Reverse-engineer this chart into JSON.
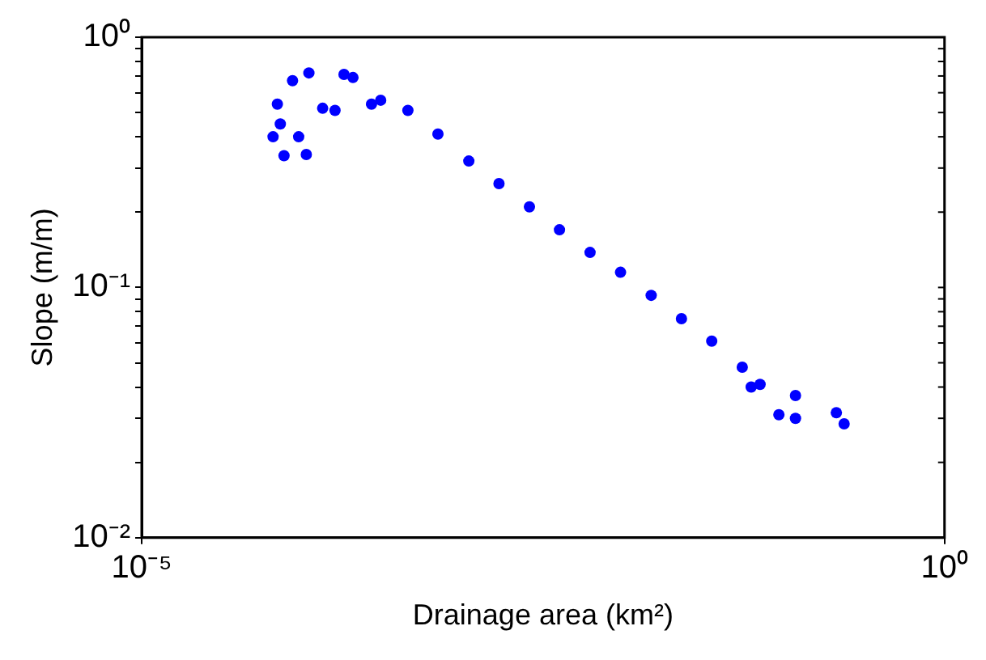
{
  "chart_data": {
    "type": "scatter",
    "xlabel": "Drainage area (km²)",
    "ylabel": "Slope (m/m)",
    "log": "xy",
    "grid": false,
    "legend": false,
    "marker": "circle",
    "xlim": [
      1e-05,
      1
    ],
    "ylim": [
      0.01,
      1
    ],
    "xticks": [
      {
        "value": 1e-05,
        "label": "10⁻⁵"
      },
      {
        "value": 1,
        "label": "10⁰"
      }
    ],
    "yticks": [
      {
        "value": 0.01,
        "label": "10⁻²"
      },
      {
        "value": 0.02,
        "label": null
      },
      {
        "value": 0.03,
        "label": null
      },
      {
        "value": 0.04,
        "label": null
      },
      {
        "value": 0.05,
        "label": null
      },
      {
        "value": 0.06,
        "label": null
      },
      {
        "value": 0.07,
        "label": null
      },
      {
        "value": 0.08,
        "label": null
      },
      {
        "value": 0.09,
        "label": null
      },
      {
        "value": 0.1,
        "label": "10⁻¹"
      },
      {
        "value": 0.2,
        "label": null
      },
      {
        "value": 0.3,
        "label": null
      },
      {
        "value": 0.4,
        "label": null
      },
      {
        "value": 0.5,
        "label": null
      },
      {
        "value": 0.6,
        "label": null
      },
      {
        "value": 0.7,
        "label": null
      },
      {
        "value": 0.8,
        "label": null
      },
      {
        "value": 0.9,
        "label": null
      },
      {
        "value": 1,
        "label": "10⁰"
      }
    ],
    "series": [
      {
        "color": "#0000ff",
        "x": [
          6.58e-05,
          7.7e-05,
          0.000106,
          8.7e-05,
          0.00011,
          7e-05,
          7.3e-05,
          9.5e-05,
          0.000134,
          0.00016,
          0.000182,
          0.000207,
          0.00027,
          0.000308,
          0.000455,
          0.0007,
          0.00109,
          0.00168,
          0.0026,
          0.004,
          0.0062,
          0.0096,
          0.0149,
          0.023,
          0.0355,
          0.055,
          0.0625,
          0.071,
          0.093,
          0.118,
          0.118,
          0.212,
          0.237
        ],
        "values": [
          0.4,
          0.336,
          0.34,
          0.67,
          0.72,
          0.54,
          0.45,
          0.4,
          0.52,
          0.51,
          0.71,
          0.69,
          0.54,
          0.56,
          0.51,
          0.41,
          0.32,
          0.26,
          0.21,
          0.17,
          0.138,
          0.115,
          0.093,
          0.075,
          0.061,
          0.048,
          0.04,
          0.041,
          0.031,
          0.037,
          0.03,
          0.0316,
          0.0285
        ]
      }
    ]
  }
}
